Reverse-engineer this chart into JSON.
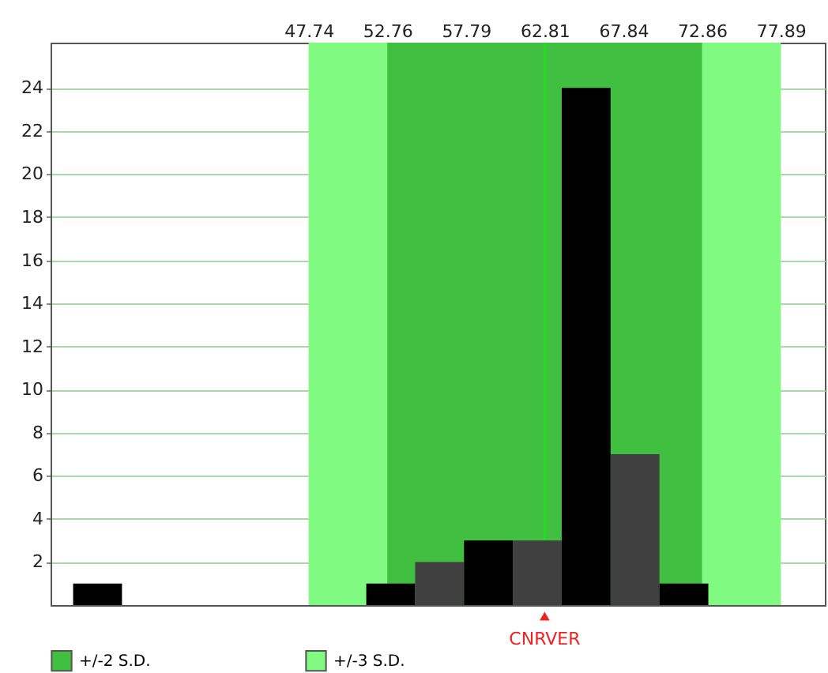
{
  "chart_data": {
    "type": "histogram",
    "bins": [
      32.7,
      35.82,
      38.94,
      42.06,
      45.18,
      48.3,
      51.42,
      54.54,
      57.66,
      60.78,
      63.9,
      67.02,
      70.14,
      73.26
    ],
    "values": [
      1,
      0,
      0,
      0,
      0,
      0,
      1,
      2,
      3,
      3,
      24,
      7,
      1
    ],
    "colors": [
      "#000000",
      "#404040",
      "#000000",
      "#404040",
      "#000000",
      "#404040",
      "#000000",
      "#404040",
      "#000000",
      "#404040",
      "#000000",
      "#404040",
      "#000000"
    ],
    "xlim": [
      31.26,
      80.7
    ],
    "xticks": [
      47.74,
      52.76,
      57.79,
      62.81,
      67.84,
      72.86,
      77.89
    ],
    "ylim": [
      0,
      26.1
    ],
    "yticks": [
      2,
      4,
      6,
      8,
      10,
      12,
      14,
      16,
      18,
      20,
      22,
      24
    ],
    "grid": "y",
    "legend": "bottom left",
    "bands": [
      {
        "axis": "x",
        "from": 52.76,
        "to": 72.86,
        "label": "+/-2 S.D.",
        "color": "#40bf40"
      },
      {
        "axis": "x",
        "from": 47.74,
        "to": 77.89,
        "label": "+/-3 S.D.",
        "color": "#80fa80"
      }
    ],
    "ref_lines": [
      {
        "axis": "x",
        "value": 62.81,
        "color": "#22dd22"
      }
    ],
    "annotations": [
      {
        "text": "CNRVER",
        "x": 62.81,
        "y": 0
      }
    ]
  }
}
